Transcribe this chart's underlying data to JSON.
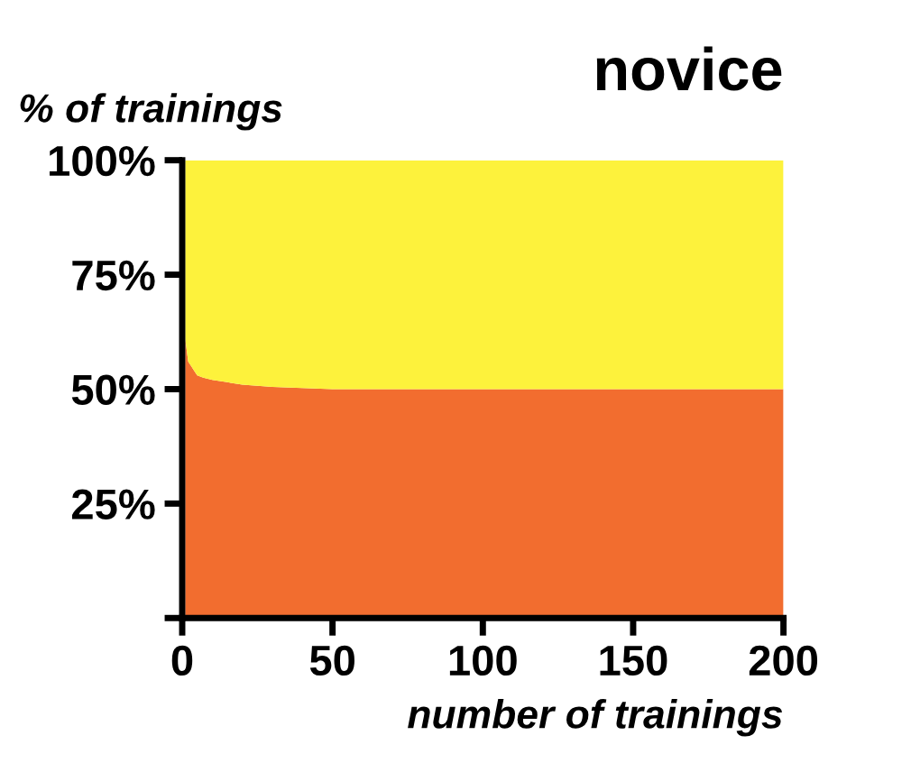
{
  "chart_data": {
    "type": "area",
    "title": "novice",
    "xlabel": "number of trainings",
    "ylabel": "% of trainings",
    "stacked": true,
    "x": [
      1,
      2,
      3,
      4,
      5,
      7,
      10,
      15,
      20,
      30,
      50,
      100,
      150,
      200
    ],
    "series": [
      {
        "color": "#f26d2f",
        "values": [
          61,
          56,
          55,
          54,
          53,
          52.5,
          52,
          51.5,
          51,
          50.5,
          50,
          50,
          50,
          50
        ]
      },
      {
        "color": "#fdf23c",
        "values": [
          39,
          44,
          45,
          46,
          47,
          47.5,
          48,
          48.5,
          49,
          49.5,
          50,
          50,
          50,
          50
        ]
      }
    ],
    "xlim": [
      0,
      200
    ],
    "xticks": [
      0,
      50,
      100,
      150,
      200
    ],
    "ylim": [
      0,
      100
    ],
    "yticks": [
      {
        "value": 25,
        "label": "25%"
      },
      {
        "value": 50,
        "label": "50%"
      },
      {
        "value": 75,
        "label": "75%"
      },
      {
        "value": 100,
        "label": "100%"
      }
    ],
    "grid": false
  }
}
